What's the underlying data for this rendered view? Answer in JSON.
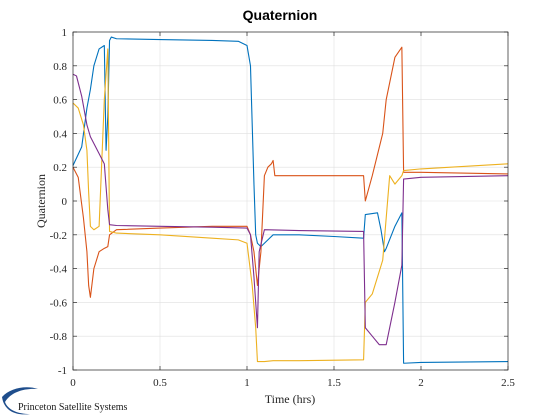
{
  "chart_data": {
    "type": "line",
    "title": "Quaternion",
    "xlabel": "Time (hrs)",
    "ylabel": "Quaternion",
    "xlim": [
      0,
      2.5
    ],
    "ylim": [
      -1,
      1
    ],
    "xticks": [
      0,
      0.5,
      1,
      1.5,
      2,
      2.5
    ],
    "xtick_labels": [
      "0",
      "0.5",
      "1",
      "1.5",
      "2",
      "2.5"
    ],
    "yticks": [
      -1,
      -0.8,
      -0.6,
      -0.4,
      -0.2,
      0,
      0.2,
      0.4,
      0.6,
      0.8,
      1
    ],
    "ytick_labels": [
      "-1",
      "-0.8",
      "-0.6",
      "-0.4",
      "-0.2",
      "0",
      "0.2",
      "0.4",
      "0.6",
      "0.8",
      "1"
    ],
    "grid": true,
    "series": [
      {
        "color": "#0072BD",
        "points": [
          [
            0,
            0.21
          ],
          [
            0.05,
            0.32
          ],
          [
            0.08,
            0.55
          ],
          [
            0.1,
            0.66
          ],
          [
            0.12,
            0.8
          ],
          [
            0.15,
            0.9
          ],
          [
            0.18,
            0.92
          ],
          [
            0.19,
            0.3
          ],
          [
            0.2,
            0.5
          ],
          [
            0.21,
            0.95
          ],
          [
            0.22,
            0.97
          ],
          [
            0.25,
            0.96
          ],
          [
            0.5,
            0.955
          ],
          [
            0.8,
            0.95
          ],
          [
            0.95,
            0.945
          ],
          [
            1.0,
            0.92
          ],
          [
            1.02,
            0.8
          ],
          [
            1.04,
            0.1
          ],
          [
            1.05,
            -0.2
          ],
          [
            1.06,
            -0.25
          ],
          [
            1.08,
            -0.27
          ],
          [
            1.12,
            -0.23
          ],
          [
            1.15,
            -0.2
          ],
          [
            1.3,
            -0.2
          ],
          [
            1.5,
            -0.21
          ],
          [
            1.67,
            -0.22
          ],
          [
            1.68,
            -0.08
          ],
          [
            1.75,
            -0.07
          ],
          [
            1.77,
            -0.17
          ],
          [
            1.79,
            -0.3
          ],
          [
            1.8,
            -0.28
          ],
          [
            1.85,
            -0.15
          ],
          [
            1.89,
            -0.07
          ],
          [
            1.9,
            -0.96
          ],
          [
            2.0,
            -0.955
          ],
          [
            2.5,
            -0.95
          ]
        ]
      },
      {
        "color": "#D95319",
        "points": [
          [
            0,
            0.2
          ],
          [
            0.03,
            0.14
          ],
          [
            0.06,
            -0.1
          ],
          [
            0.08,
            -0.3
          ],
          [
            0.09,
            -0.5
          ],
          [
            0.1,
            -0.57
          ],
          [
            0.12,
            -0.4
          ],
          [
            0.15,
            -0.3
          ],
          [
            0.18,
            -0.28
          ],
          [
            0.2,
            -0.27
          ],
          [
            0.21,
            -0.2
          ],
          [
            0.25,
            -0.17
          ],
          [
            0.5,
            -0.16
          ],
          [
            0.8,
            -0.15
          ],
          [
            1.0,
            -0.15
          ],
          [
            1.02,
            -0.2
          ],
          [
            1.04,
            -0.3
          ],
          [
            1.06,
            -0.5
          ],
          [
            1.08,
            -0.3
          ],
          [
            1.1,
            0.15
          ],
          [
            1.12,
            0.2
          ],
          [
            1.14,
            0.22
          ],
          [
            1.15,
            0.24
          ],
          [
            1.16,
            0.15
          ],
          [
            1.3,
            0.15
          ],
          [
            1.67,
            0.15
          ],
          [
            1.68,
            0.0
          ],
          [
            1.72,
            0.15
          ],
          [
            1.78,
            0.4
          ],
          [
            1.8,
            0.6
          ],
          [
            1.85,
            0.85
          ],
          [
            1.89,
            0.91
          ],
          [
            1.9,
            0.17
          ],
          [
            2.0,
            0.17
          ],
          [
            2.5,
            0.16
          ]
        ]
      },
      {
        "color": "#EDB120",
        "points": [
          [
            0,
            0.58
          ],
          [
            0.03,
            0.55
          ],
          [
            0.06,
            0.45
          ],
          [
            0.08,
            0.3
          ],
          [
            0.09,
            0.05
          ],
          [
            0.1,
            -0.15
          ],
          [
            0.12,
            -0.17
          ],
          [
            0.15,
            -0.15
          ],
          [
            0.18,
            0.6
          ],
          [
            0.2,
            0.9
          ],
          [
            0.21,
            -0.18
          ],
          [
            0.25,
            -0.19
          ],
          [
            0.5,
            -0.2
          ],
          [
            0.8,
            -0.22
          ],
          [
            0.95,
            -0.23
          ],
          [
            1.0,
            -0.25
          ],
          [
            1.03,
            -0.5
          ],
          [
            1.05,
            -0.75
          ],
          [
            1.06,
            -0.95
          ],
          [
            1.1,
            -0.95
          ],
          [
            1.15,
            -0.945
          ],
          [
            1.3,
            -0.945
          ],
          [
            1.67,
            -0.94
          ],
          [
            1.68,
            -0.6
          ],
          [
            1.72,
            -0.55
          ],
          [
            1.78,
            -0.35
          ],
          [
            1.82,
            0.15
          ],
          [
            1.85,
            0.1
          ],
          [
            1.89,
            0.15
          ],
          [
            1.9,
            0.18
          ],
          [
            2.0,
            0.19
          ],
          [
            2.5,
            0.22
          ]
        ]
      },
      {
        "color": "#7E2F8E",
        "points": [
          [
            0,
            0.75
          ],
          [
            0.02,
            0.74
          ],
          [
            0.05,
            0.62
          ],
          [
            0.08,
            0.45
          ],
          [
            0.1,
            0.38
          ],
          [
            0.15,
            0.28
          ],
          [
            0.18,
            0.22
          ],
          [
            0.2,
            -0.05
          ],
          [
            0.21,
            -0.14
          ],
          [
            0.25,
            -0.145
          ],
          [
            0.5,
            -0.15
          ],
          [
            0.8,
            -0.155
          ],
          [
            1.0,
            -0.16
          ],
          [
            1.02,
            -0.2
          ],
          [
            1.04,
            -0.45
          ],
          [
            1.06,
            -0.75
          ],
          [
            1.07,
            -0.3
          ],
          [
            1.1,
            -0.17
          ],
          [
            1.3,
            -0.175
          ],
          [
            1.67,
            -0.18
          ],
          [
            1.68,
            -0.75
          ],
          [
            1.72,
            -0.8
          ],
          [
            1.76,
            -0.85
          ],
          [
            1.8,
            -0.85
          ],
          [
            1.85,
            -0.6
          ],
          [
            1.89,
            -0.38
          ],
          [
            1.9,
            0.13
          ],
          [
            2.0,
            0.14
          ],
          [
            2.5,
            0.15
          ]
        ]
      }
    ]
  },
  "logo": {
    "text": "Princeton Satellite Systems"
  }
}
